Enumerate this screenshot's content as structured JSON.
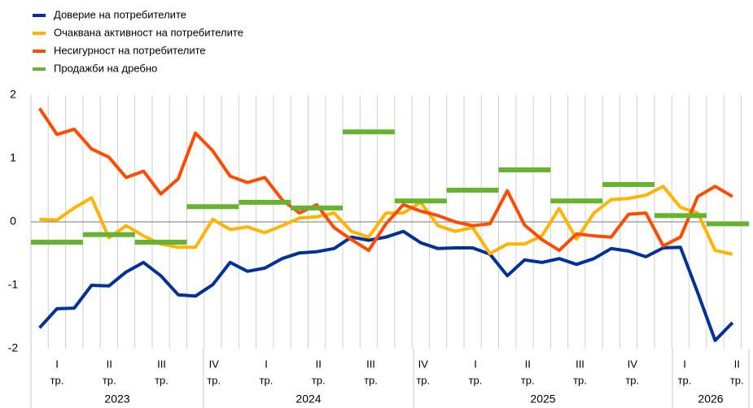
{
  "chart_data": {
    "type": "line",
    "legend": "top-left",
    "ylim": [
      -2,
      2
    ],
    "yticks": [
      -2,
      -1,
      0,
      1,
      2
    ],
    "quarters": [
      "I",
      "II",
      "III",
      "IV",
      "I",
      "II",
      "III",
      "IV",
      "I",
      "II",
      "III",
      "IV",
      "I",
      "II"
    ],
    "quarter_suffix": "тр.",
    "years": [
      "2023",
      "2024",
      "2025",
      "2026"
    ],
    "series": [
      {
        "name": "Доверие на потребителите",
        "color": "#003299",
        "values": [
          -1.67,
          -1.37,
          -1.36,
          -1.0,
          -1.01,
          -0.79,
          -0.64,
          -0.85,
          -1.15,
          -1.17,
          -0.99,
          -0.64,
          -0.78,
          -0.73,
          -0.58,
          -0.49,
          -0.47,
          -0.42,
          -0.24,
          -0.29,
          -0.24,
          -0.15,
          -0.33,
          -0.42,
          -0.41,
          -0.41,
          -0.51,
          -0.85,
          -0.6,
          -0.64,
          -0.58,
          -0.67,
          -0.58,
          -0.42,
          -0.46,
          -0.55,
          -0.41,
          -0.4,
          -1.12,
          -1.87,
          -1.59
        ]
      },
      {
        "name": "Очаквана активност на потребителите",
        "color": "#ffb400",
        "values": [
          0.04,
          0.03,
          0.22,
          0.38,
          -0.25,
          -0.06,
          -0.22,
          -0.35,
          -0.4,
          -0.4,
          0.04,
          -0.12,
          -0.08,
          -0.17,
          -0.06,
          0.06,
          0.08,
          0.14,
          -0.15,
          -0.24,
          0.14,
          0.14,
          0.31,
          -0.06,
          -0.15,
          -0.09,
          -0.5,
          -0.35,
          -0.35,
          -0.22,
          0.21,
          -0.27,
          0.14,
          0.35,
          0.37,
          0.42,
          0.56,
          0.23,
          0.14,
          -0.45,
          -0.51
        ]
      },
      {
        "name": "Несигурност на потребителите",
        "color": "#ff4b00",
        "values": [
          1.79,
          1.38,
          1.46,
          1.15,
          1.02,
          0.7,
          0.8,
          0.44,
          0.68,
          1.4,
          1.12,
          0.72,
          0.62,
          0.7,
          0.35,
          0.14,
          0.27,
          -0.09,
          -0.28,
          -0.45,
          -0.03,
          0.27,
          0.17,
          0.1,
          0.0,
          -0.06,
          -0.03,
          0.49,
          -0.05,
          -0.28,
          -0.45,
          -0.19,
          -0.22,
          -0.24,
          0.12,
          0.14,
          -0.38,
          -0.24,
          0.4,
          0.56,
          0.4
        ]
      },
      {
        "name": "Продажби на дребно",
        "color": "#65b32e",
        "period": "quarter",
        "values": [
          -0.32,
          -0.2,
          -0.32,
          0.24,
          0.31,
          0.22,
          1.42,
          0.33,
          0.5,
          0.82,
          0.33,
          0.59,
          0.1,
          -0.03
        ]
      }
    ]
  }
}
